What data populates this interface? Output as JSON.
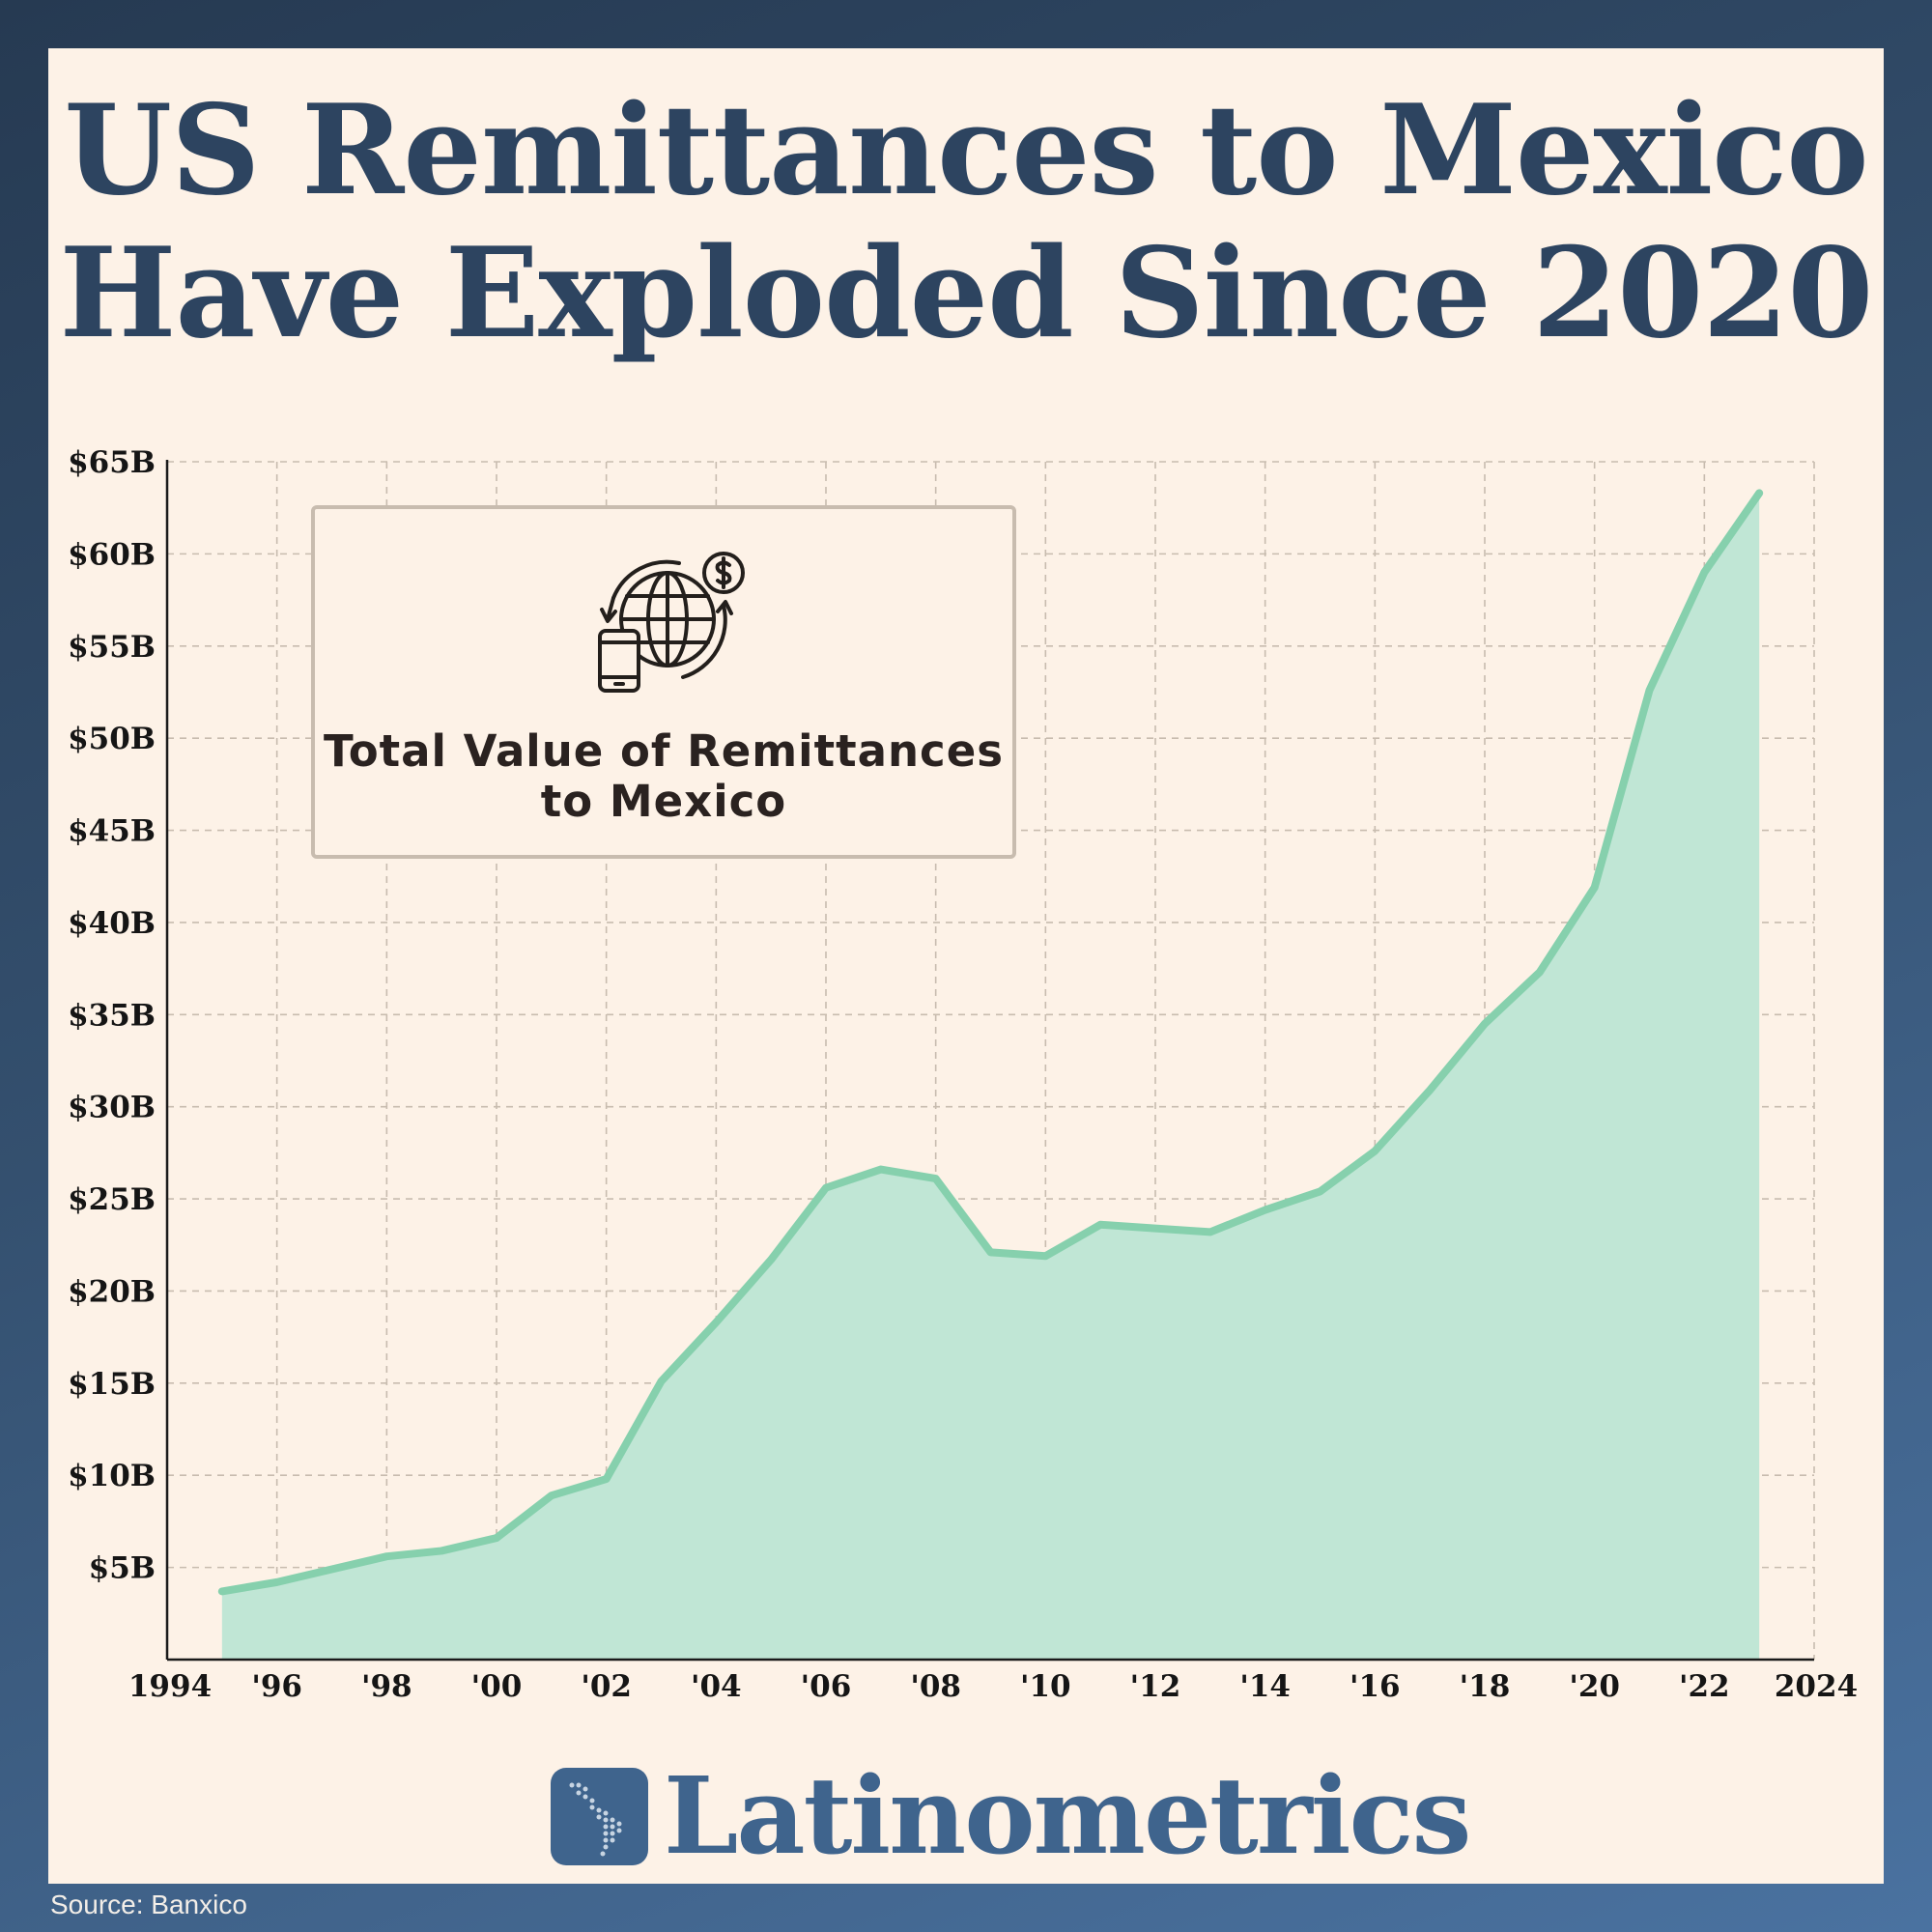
{
  "title_lines": [
    "US Remittances to Mexico",
    "Have Exploded Since 2020"
  ],
  "legend": {
    "line1": "Total Value of Remittances",
    "line2": "to Mexico",
    "icon": "globe-money-transfer-icon"
  },
  "brand": {
    "name": "Latinometrics",
    "logo_icon": "latin-america-map-icon"
  },
  "source": "Source: Banxico",
  "colors": {
    "background": "#fdf2e7",
    "title": "#2d4460",
    "line": "#86d0ad",
    "fill": "#c0e6d5",
    "grid": "#c8bcaf",
    "brand": "#3f648d"
  },
  "chart_data": {
    "type": "area",
    "title": "Total Value of Remittances to Mexico",
    "xlabel": "",
    "ylabel": "",
    "xlim": [
      1994,
      2024
    ],
    "ylim": [
      0,
      65
    ],
    "grid": true,
    "x_ticks": [
      {
        "value": 1994,
        "label": "1994"
      },
      {
        "value": 1996,
        "label": "'96"
      },
      {
        "value": 1998,
        "label": "'98"
      },
      {
        "value": 2000,
        "label": "'00"
      },
      {
        "value": 2002,
        "label": "'02"
      },
      {
        "value": 2004,
        "label": "'04"
      },
      {
        "value": 2006,
        "label": "'06"
      },
      {
        "value": 2008,
        "label": "'08"
      },
      {
        "value": 2010,
        "label": "'10"
      },
      {
        "value": 2012,
        "label": "'12"
      },
      {
        "value": 2014,
        "label": "'14"
      },
      {
        "value": 2016,
        "label": "'16"
      },
      {
        "value": 2018,
        "label": "'18"
      },
      {
        "value": 2020,
        "label": "'20"
      },
      {
        "value": 2022,
        "label": "'22"
      },
      {
        "value": 2024,
        "label": "2024"
      }
    ],
    "y_ticks": [
      {
        "value": 5,
        "label": "$5B"
      },
      {
        "value": 10,
        "label": "$10B"
      },
      {
        "value": 15,
        "label": "$15B"
      },
      {
        "value": 20,
        "label": "$20B"
      },
      {
        "value": 25,
        "label": "$25B"
      },
      {
        "value": 30,
        "label": "$30B"
      },
      {
        "value": 35,
        "label": "$35B"
      },
      {
        "value": 40,
        "label": "$40B"
      },
      {
        "value": 45,
        "label": "$45B"
      },
      {
        "value": 50,
        "label": "$50B"
      },
      {
        "value": 55,
        "label": "$55B"
      },
      {
        "value": 60,
        "label": "$60B"
      },
      {
        "value": 65,
        "label": "$65B"
      }
    ],
    "x": [
      1995,
      1996,
      1997,
      1998,
      1999,
      2000,
      2001,
      2002,
      2003,
      2004,
      2005,
      2006,
      2007,
      2008,
      2009,
      2010,
      2011,
      2012,
      2013,
      2014,
      2015,
      2016,
      2017,
      2018,
      2019,
      2020,
      2021,
      2022,
      2023
    ],
    "values": [
      3.7,
      4.2,
      4.9,
      5.6,
      5.9,
      6.6,
      8.9,
      9.8,
      15.1,
      18.3,
      21.7,
      25.6,
      26.6,
      26.1,
      22.1,
      21.9,
      23.6,
      23.4,
      23.2,
      24.4,
      25.4,
      27.6,
      30.9,
      34.5,
      37.3,
      41.9,
      52.6,
      59.0,
      63.3
    ]
  }
}
